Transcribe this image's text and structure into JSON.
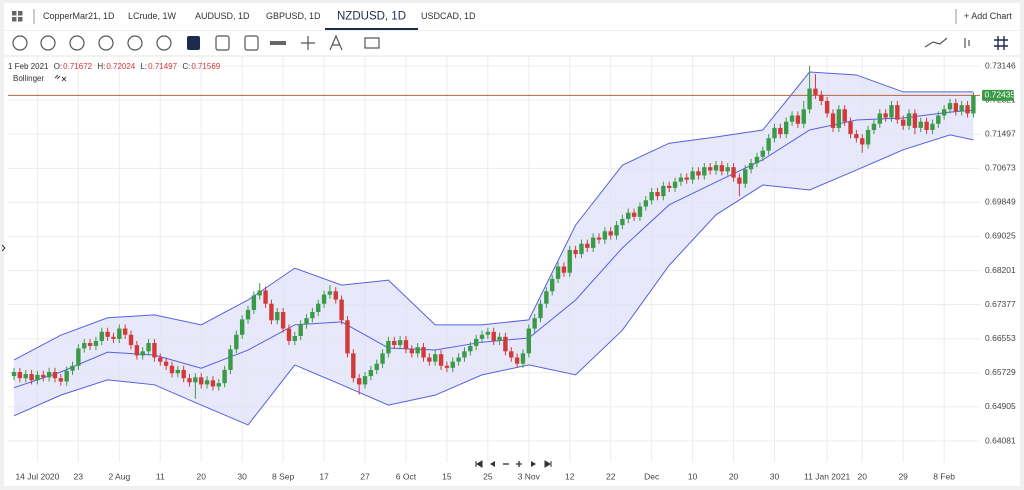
{
  "tabs": [
    "CopperMar21, 1D",
    "LCrude, 1W",
    "AUDUSD, 1D",
    "GBPUSD, 1D",
    "NZDUSD, 1D",
    "USDCAD, 1D"
  ],
  "active_tab": 4,
  "add_chart": "+ Add Chart",
  "chart_data": {
    "type": "candlestick",
    "crosshair": {
      "date": "1 Feb 2021",
      "labels": [
        "O:",
        "H:",
        "L:",
        "C:"
      ],
      "values": [
        0.71672,
        0.72024,
        0.71497,
        0.71569
      ]
    },
    "indicator": "Bollinger",
    "last_price": 0.72435,
    "colors": {
      "up": "#3b9a47",
      "down": "#d23a3a",
      "band": "#5560e0",
      "band_fill": "#dfe2f8",
      "last_line": "#b5653a"
    },
    "grid": true,
    "xlim": [
      -1.03,
      165.13
    ],
    "ylim": [
      0.63574,
      0.73388
    ],
    "yticks": [
      0.73146,
      0.72321,
      0.71497,
      0.70673,
      0.69849,
      0.69025,
      0.68201,
      0.67377,
      0.66553,
      0.65729,
      0.64905,
      0.64081
    ],
    "xticks": [
      {
        "value": 4,
        "label": "14 Jul 2020"
      },
      {
        "value": 11,
        "label": "23"
      },
      {
        "value": 18,
        "label": "2 Aug"
      },
      {
        "value": 25,
        "label": "11"
      },
      {
        "value": 32,
        "label": "20"
      },
      {
        "value": 39,
        "label": "30"
      },
      {
        "value": 46,
        "label": "8 Sep"
      },
      {
        "value": 53,
        "label": "17"
      },
      {
        "value": 60,
        "label": "27"
      },
      {
        "value": 67,
        "label": "6 Oct"
      },
      {
        "value": 74,
        "label": "15"
      },
      {
        "value": 81,
        "label": "25"
      },
      {
        "value": 88,
        "label": "3 Nov"
      },
      {
        "value": 95,
        "label": "12"
      },
      {
        "value": 102,
        "label": "22"
      },
      {
        "value": 109,
        "label": "Dec"
      },
      {
        "value": 116,
        "label": "10"
      },
      {
        "value": 123,
        "label": "20"
      },
      {
        "value": 130,
        "label": "30"
      },
      {
        "value": 139,
        "label": "11 Jan 2021"
      },
      {
        "value": 145,
        "label": "20"
      },
      {
        "value": 152,
        "label": "29"
      },
      {
        "value": 159,
        "label": "8 Feb"
      }
    ],
    "open": [
      0.6565,
      0.6575,
      0.656,
      0.657,
      0.6555,
      0.6568,
      0.6562,
      0.6575,
      0.656,
      0.6552,
      0.6578,
      0.659,
      0.6632,
      0.6645,
      0.6638,
      0.665,
      0.6672,
      0.666,
      0.6655,
      0.668,
      0.6665,
      0.664,
      0.6615,
      0.6625,
      0.6645,
      0.661,
      0.66,
      0.659,
      0.6572,
      0.658,
      0.656,
      0.655,
      0.6562,
      0.6545,
      0.6555,
      0.654,
      0.6548,
      0.658,
      0.663,
      0.6665,
      0.6702,
      0.6725,
      0.676,
      0.6772,
      0.674,
      0.67,
      0.672,
      0.668,
      0.665,
      0.6662,
      0.669,
      0.6705,
      0.672,
      0.674,
      0.6762,
      0.677,
      0.675,
      0.67,
      0.662,
      0.656,
      0.6545,
      0.6565,
      0.658,
      0.6595,
      0.662,
      0.665,
      0.664,
      0.6652,
      0.663,
      0.662,
      0.6635,
      0.661,
      0.66,
      0.6618,
      0.659,
      0.6585,
      0.66,
      0.661,
      0.6625,
      0.6638,
      0.6655,
      0.6665,
      0.6672,
      0.665,
      0.666,
      0.6625,
      0.661,
      0.6595,
      0.662,
      0.668,
      0.6705,
      0.674,
      0.677,
      0.68,
      0.683,
      0.6815,
      0.687,
      0.686,
      0.6885,
      0.6875,
      0.69,
      0.6895,
      0.6915,
      0.6905,
      0.693,
      0.6945,
      0.696,
      0.695,
      0.6975,
      0.699,
      0.701,
      0.7,
      0.7025,
      0.702,
      0.7035,
      0.7045,
      0.704,
      0.706,
      0.705,
      0.707,
      0.7062,
      0.7075,
      0.706,
      0.707,
      0.7045,
      0.703,
      0.7065,
      0.708,
      0.7095,
      0.711,
      0.714,
      0.7165,
      0.715,
      0.718,
      0.7195,
      0.7175,
      0.721,
      0.726,
      0.7245,
      0.723,
      0.72,
      0.7165,
      0.721,
      0.718,
      0.715,
      0.714,
      0.7125,
      0.716,
      0.7175,
      0.72,
      0.719,
      0.722,
      0.7185,
      0.717,
      0.72,
      0.7165,
      0.718,
      0.716,
      0.7175,
      0.7195,
      0.721,
      0.7225,
      0.7205,
      0.722,
      0.72
    ],
    "high": [
      0.6585,
      0.6585,
      0.658,
      0.658,
      0.6578,
      0.6578,
      0.6585,
      0.6585,
      0.657,
      0.6588,
      0.66,
      0.6642,
      0.6655,
      0.6655,
      0.666,
      0.6682,
      0.6682,
      0.667,
      0.669,
      0.669,
      0.6675,
      0.665,
      0.6635,
      0.6655,
      0.6655,
      0.662,
      0.661,
      0.66,
      0.659,
      0.659,
      0.657,
      0.6572,
      0.6572,
      0.6565,
      0.6565,
      0.6558,
      0.659,
      0.664,
      0.6675,
      0.6712,
      0.6735,
      0.677,
      0.679,
      0.6782,
      0.675,
      0.673,
      0.673,
      0.669,
      0.6672,
      0.67,
      0.6715,
      0.673,
      0.675,
      0.6772,
      0.6785,
      0.678,
      0.676,
      0.671,
      0.663,
      0.657,
      0.6575,
      0.659,
      0.6605,
      0.663,
      0.666,
      0.666,
      0.6662,
      0.6662,
      0.664,
      0.6645,
      0.6645,
      0.662,
      0.6628,
      0.6628,
      0.66,
      0.661,
      0.662,
      0.6635,
      0.6648,
      0.6665,
      0.6675,
      0.6682,
      0.6682,
      0.667,
      0.667,
      0.6635,
      0.662,
      0.663,
      0.669,
      0.6715,
      0.675,
      0.678,
      0.681,
      0.684,
      0.684,
      0.688,
      0.688,
      0.6895,
      0.6895,
      0.691,
      0.691,
      0.6925,
      0.6925,
      0.694,
      0.6955,
      0.697,
      0.697,
      0.6985,
      0.7,
      0.702,
      0.702,
      0.7035,
      0.7035,
      0.7045,
      0.7055,
      0.7055,
      0.707,
      0.707,
      0.708,
      0.708,
      0.7085,
      0.7085,
      0.708,
      0.708,
      0.7055,
      0.7075,
      0.709,
      0.7105,
      0.712,
      0.715,
      0.7175,
      0.7175,
      0.719,
      0.7205,
      0.7205,
      0.723,
      0.7315,
      0.7295,
      0.7255,
      0.724,
      0.721,
      0.722,
      0.722,
      0.719,
      0.716,
      0.715,
      0.717,
      0.7185,
      0.721,
      0.721,
      0.723,
      0.723,
      0.7195,
      0.721,
      0.721,
      0.719,
      0.719,
      0.7185,
      0.7205,
      0.722,
      0.7235,
      0.7235,
      0.723,
      0.723,
      0.725
    ],
    "low": [
      0.6555,
      0.655,
      0.655,
      0.6545,
      0.6545,
      0.6552,
      0.6552,
      0.655,
      0.6542,
      0.6542,
      0.6568,
      0.658,
      0.6622,
      0.6628,
      0.6628,
      0.664,
      0.665,
      0.6645,
      0.6645,
      0.6655,
      0.663,
      0.6605,
      0.6605,
      0.6615,
      0.66,
      0.659,
      0.658,
      0.6562,
      0.6562,
      0.655,
      0.654,
      0.651,
      0.6535,
      0.6535,
      0.653,
      0.653,
      0.6538,
      0.657,
      0.662,
      0.6655,
      0.6692,
      0.6715,
      0.675,
      0.673,
      0.669,
      0.669,
      0.667,
      0.664,
      0.664,
      0.6652,
      0.668,
      0.6695,
      0.671,
      0.673,
      0.6752,
      0.674,
      0.669,
      0.661,
      0.655,
      0.652,
      0.6535,
      0.6555,
      0.657,
      0.6585,
      0.661,
      0.663,
      0.663,
      0.662,
      0.661,
      0.661,
      0.66,
      0.659,
      0.659,
      0.658,
      0.6575,
      0.6575,
      0.659,
      0.66,
      0.6615,
      0.6628,
      0.6645,
      0.6655,
      0.664,
      0.664,
      0.6615,
      0.66,
      0.6585,
      0.6585,
      0.661,
      0.667,
      0.6695,
      0.673,
      0.676,
      0.679,
      0.6805,
      0.6805,
      0.685,
      0.685,
      0.6865,
      0.6865,
      0.6885,
      0.6885,
      0.6895,
      0.6895,
      0.692,
      0.6935,
      0.694,
      0.694,
      0.6965,
      0.698,
      0.699,
      0.699,
      0.701,
      0.701,
      0.7025,
      0.703,
      0.703,
      0.704,
      0.704,
      0.7052,
      0.7052,
      0.705,
      0.705,
      0.7035,
      0.7,
      0.702,
      0.7055,
      0.707,
      0.7085,
      0.71,
      0.713,
      0.714,
      0.714,
      0.717,
      0.7165,
      0.7165,
      0.72,
      0.7235,
      0.722,
      0.719,
      0.7155,
      0.7155,
      0.717,
      0.714,
      0.713,
      0.7105,
      0.7115,
      0.715,
      0.7165,
      0.718,
      0.718,
      0.7175,
      0.716,
      0.716,
      0.715,
      0.7155,
      0.715,
      0.715,
      0.7165,
      0.7185,
      0.72,
      0.7195,
      0.7195,
      0.719,
      0.719
    ],
    "close": [
      0.6575,
      0.656,
      0.657,
      0.6555,
      0.6568,
      0.6562,
      0.6575,
      0.656,
      0.6552,
      0.6578,
      0.659,
      0.6632,
      0.6645,
      0.6638,
      0.665,
      0.6672,
      0.666,
      0.6655,
      0.668,
      0.6665,
      0.664,
      0.6615,
      0.6625,
      0.6645,
      0.661,
      0.66,
      0.659,
      0.6572,
      0.658,
      0.656,
      0.655,
      0.6562,
      0.6545,
      0.6555,
      0.654,
      0.6548,
      0.658,
      0.663,
      0.6665,
      0.6702,
      0.6725,
      0.676,
      0.6772,
      0.674,
      0.67,
      0.672,
      0.668,
      0.665,
      0.6662,
      0.669,
      0.6705,
      0.672,
      0.674,
      0.6762,
      0.677,
      0.675,
      0.67,
      0.662,
      0.656,
      0.6545,
      0.6565,
      0.658,
      0.6595,
      0.662,
      0.665,
      0.664,
      0.6652,
      0.663,
      0.662,
      0.6635,
      0.661,
      0.66,
      0.6618,
      0.659,
      0.6585,
      0.66,
      0.661,
      0.6625,
      0.6638,
      0.6655,
      0.6665,
      0.6672,
      0.665,
      0.666,
      0.6625,
      0.661,
      0.6595,
      0.662,
      0.668,
      0.6705,
      0.674,
      0.677,
      0.68,
      0.683,
      0.6815,
      0.687,
      0.686,
      0.6885,
      0.6875,
      0.69,
      0.6895,
      0.6915,
      0.6905,
      0.693,
      0.6945,
      0.696,
      0.695,
      0.6975,
      0.699,
      0.701,
      0.7,
      0.7025,
      0.702,
      0.7035,
      0.7045,
      0.704,
      0.706,
      0.705,
      0.707,
      0.7062,
      0.7075,
      0.706,
      0.707,
      0.7045,
      0.703,
      0.7065,
      0.708,
      0.7095,
      0.711,
      0.714,
      0.7165,
      0.715,
      0.718,
      0.7195,
      0.7175,
      0.721,
      0.726,
      0.7245,
      0.723,
      0.72,
      0.7165,
      0.721,
      0.718,
      0.715,
      0.714,
      0.7125,
      0.716,
      0.7175,
      0.72,
      0.719,
      0.722,
      0.7185,
      0.717,
      0.72,
      0.7165,
      0.718,
      0.716,
      0.7175,
      0.7195,
      0.721,
      0.7225,
      0.7205,
      0.722,
      0.72,
      0.7243
    ],
    "bands": {
      "x": [
        0,
        8,
        16,
        24,
        32,
        40,
        48,
        56,
        64,
        72,
        80,
        88,
        96,
        104,
        112,
        120,
        128,
        136,
        144,
        152,
        160,
        164
      ],
      "upper": [
        0.6604,
        0.6664,
        0.6706,
        0.6713,
        0.6689,
        0.6749,
        0.6826,
        0.6785,
        0.6797,
        0.6689,
        0.6689,
        0.6701,
        0.693,
        0.7075,
        0.7128,
        0.7143,
        0.716,
        0.73,
        0.7293,
        0.7252,
        0.7252,
        0.7252
      ],
      "middle": [
        0.6537,
        0.6575,
        0.6623,
        0.6616,
        0.6584,
        0.6628,
        0.6689,
        0.6696,
        0.6633,
        0.6628,
        0.6647,
        0.6657,
        0.6749,
        0.6875,
        0.6979,
        0.7034,
        0.7088,
        0.716,
        0.7184,
        0.7189,
        0.7203,
        0.7208
      ],
      "lower": [
        0.6469,
        0.6519,
        0.6556,
        0.6544,
        0.6495,
        0.6447,
        0.6592,
        0.6544,
        0.6495,
        0.6519,
        0.6568,
        0.6592,
        0.6568,
        0.6676,
        0.6833,
        0.6955,
        0.7027,
        0.7015,
        0.7063,
        0.7112,
        0.7148,
        0.7136
      ]
    }
  }
}
